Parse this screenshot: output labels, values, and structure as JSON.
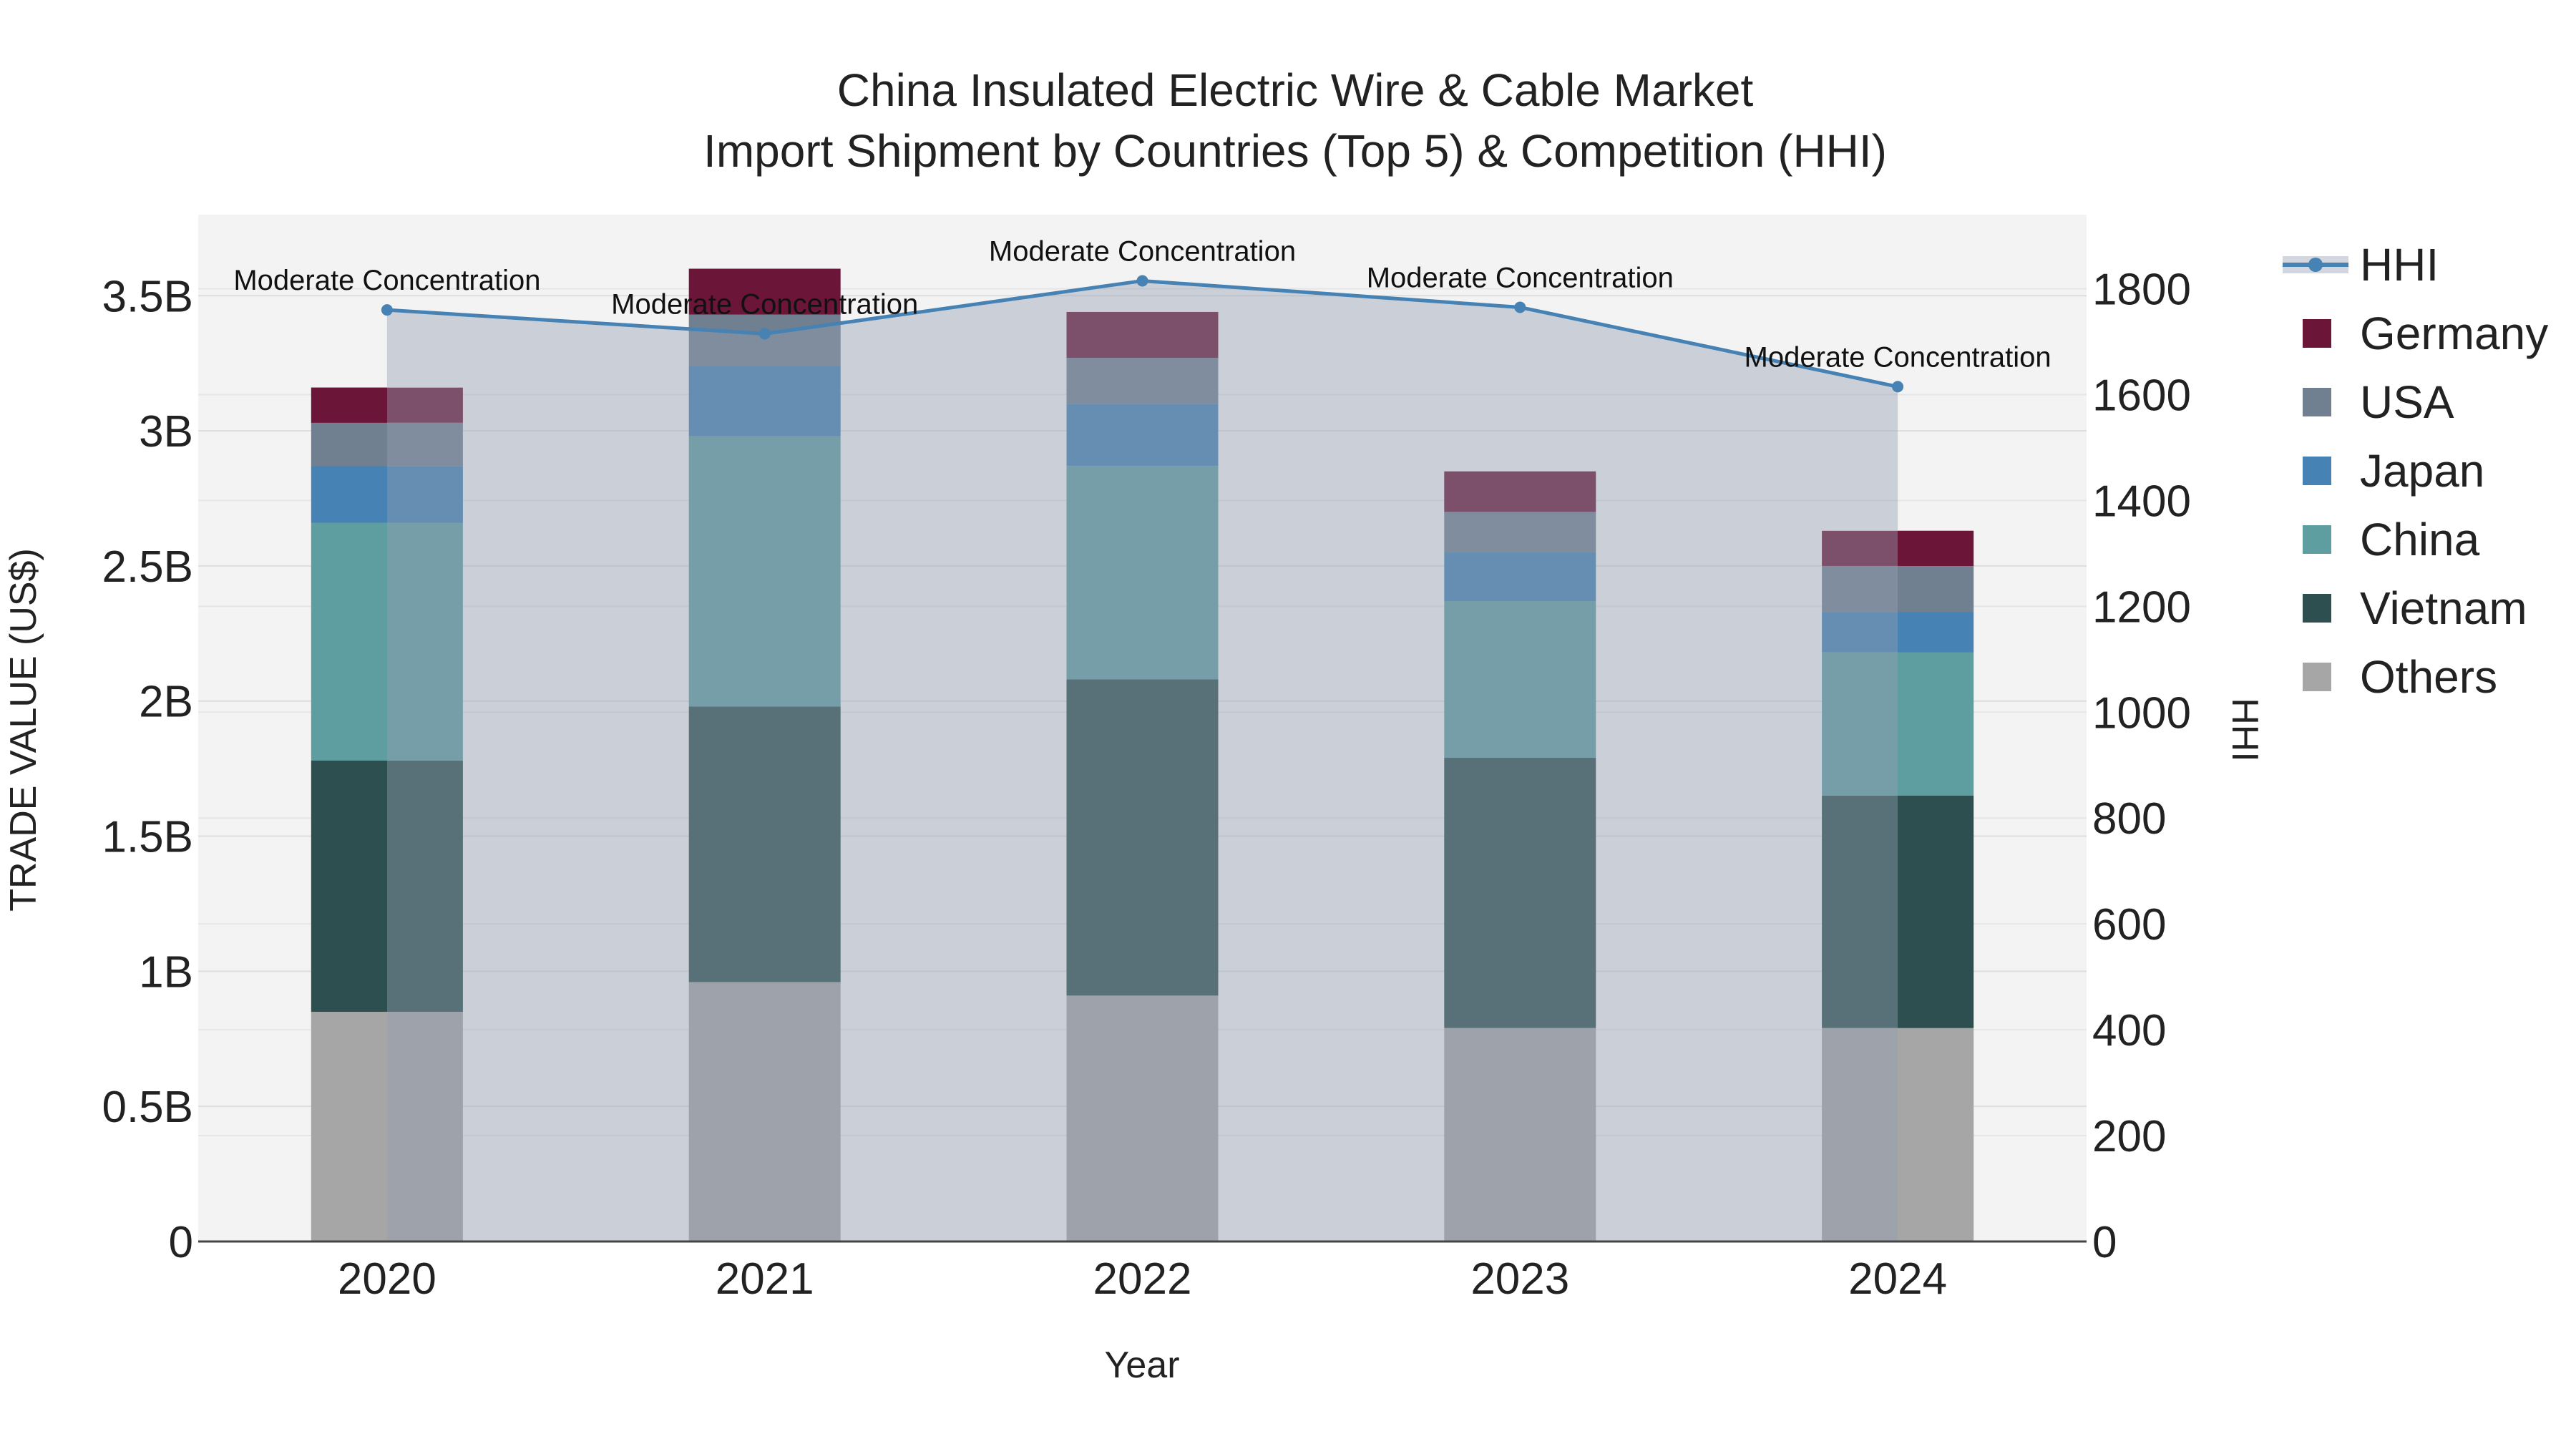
{
  "chart_data": {
    "type": "bar",
    "title": "China Insulated Electric Wire & Cable Market",
    "subtitle": "Import Shipment by Countries (Top 5) & Competition (HHI)",
    "xlabel": "Year",
    "ylabel": "TRADE VALUE (US$)",
    "y2label": "HHI",
    "categories": [
      "2020",
      "2021",
      "2022",
      "2023",
      "2024"
    ],
    "ylim": [
      0,
      3.8
    ],
    "y_ticks": [
      0,
      0.5,
      1,
      1.5,
      2,
      2.5,
      3,
      3.5
    ],
    "y_tick_labels": [
      "0",
      "0.5B",
      "1B",
      "1.5B",
      "2B",
      "2.5B",
      "3B",
      "3.5B"
    ],
    "y2lim": [
      0,
      1940
    ],
    "y2_ticks": [
      0,
      200,
      400,
      600,
      800,
      1000,
      1200,
      1400,
      1600,
      1800
    ],
    "y2_tick_labels": [
      "0",
      "200",
      "400",
      "600",
      "800",
      "1000",
      "1200",
      "1400",
      "1600",
      "1800"
    ],
    "series": [
      {
        "name": "Others",
        "color": "#a6a6a6",
        "values": [
          0.85,
          0.96,
          0.91,
          0.79,
          0.79
        ]
      },
      {
        "name": "Vietnam",
        "color": "#2e4f4f",
        "values": [
          0.93,
          1.02,
          1.17,
          1.0,
          0.86
        ]
      },
      {
        "name": "China",
        "color": "#5f9ea0",
        "values": [
          0.88,
          1.0,
          0.79,
          0.58,
          0.53
        ]
      },
      {
        "name": "Japan",
        "color": "#4682b4",
        "values": [
          0.21,
          0.26,
          0.23,
          0.18,
          0.15
        ]
      },
      {
        "name": "USA",
        "color": "#708090",
        "values": [
          0.16,
          0.19,
          0.17,
          0.15,
          0.17
        ]
      },
      {
        "name": "Germany",
        "color": "#6b1538",
        "values": [
          0.13,
          0.17,
          0.17,
          0.15,
          0.13
        ]
      }
    ],
    "legend_order": [
      "HHI",
      "Germany",
      "USA",
      "Japan",
      "China",
      "Vietnam",
      "Others"
    ],
    "hhi": {
      "name": "HHI",
      "color": "#4682b4",
      "values": [
        1760,
        1715,
        1815,
        1765,
        1615
      ],
      "labels": [
        "Moderate Concentration",
        "Moderate Concentration",
        "Moderate Concentration",
        "Moderate Concentration",
        "Moderate Concentration"
      ]
    }
  }
}
